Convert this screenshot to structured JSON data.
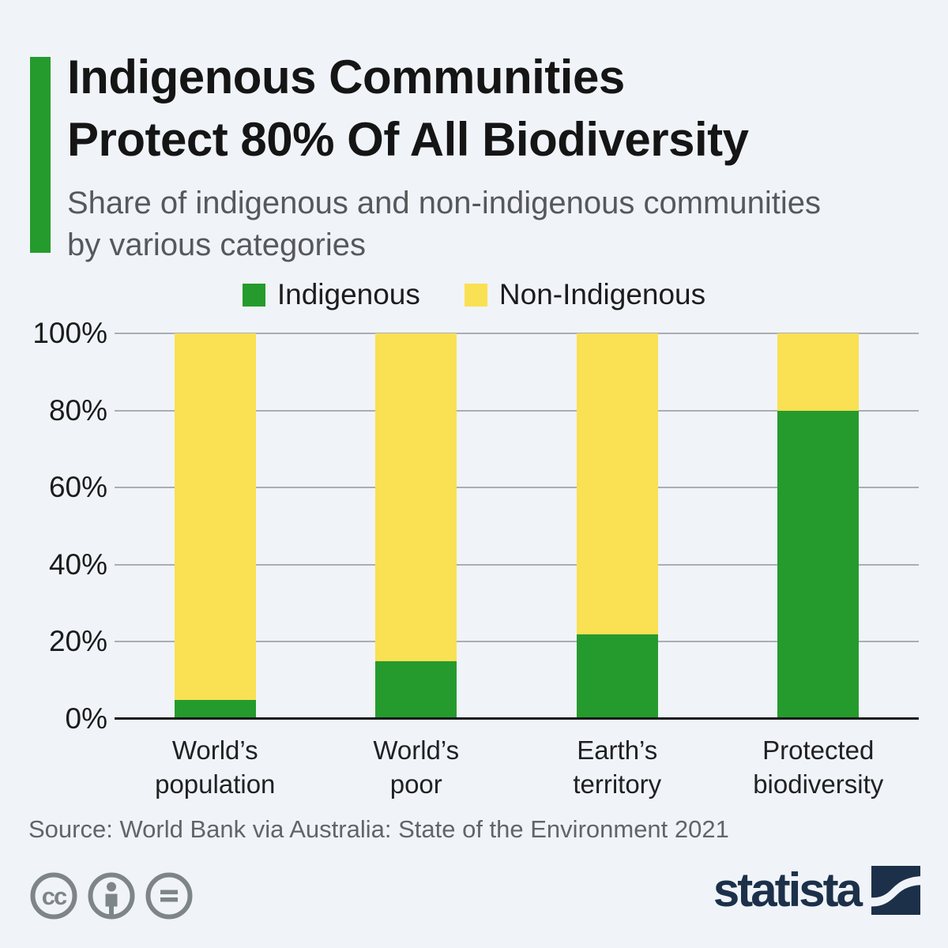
{
  "header": {
    "title_lines": [
      "Indigenous Communities",
      "Protect 80% Of All Biodiversity"
    ],
    "subtitle_lines": [
      "Share of indigenous and non-indigenous communities",
      "by various categories"
    ],
    "accent_color": "#259b2d"
  },
  "legend": [
    {
      "label": "Indigenous",
      "color": "#259b2d"
    },
    {
      "label": "Non-Indigenous",
      "color": "#fae053"
    }
  ],
  "chart_data": {
    "type": "bar",
    "stacked": true,
    "title": "Share of indigenous and non-indigenous communities by various categories",
    "categories": [
      "World’s\npopulation",
      "World’s\npoor",
      "Earth’s\nterritory",
      "Protected\nbiodiversity"
    ],
    "series": [
      {
        "name": "Indigenous",
        "color": "#259b2d",
        "values": [
          5,
          15,
          22,
          80
        ]
      },
      {
        "name": "Non-Indigenous",
        "color": "#fae053",
        "values": [
          95,
          85,
          78,
          20
        ]
      }
    ],
    "xlabel": "",
    "ylabel": "",
    "ylim": [
      0,
      100
    ],
    "y_ticks": [
      "0%",
      "20%",
      "40%",
      "60%",
      "80%",
      "100%"
    ],
    "grid": true,
    "legend_position": "top",
    "gridline_color": "#aaaeb4",
    "axis_color": "#17181a"
  },
  "footer": {
    "source": "Source: World Bank via Australia: State of the Environment 2021",
    "license_icons": [
      "cc-icon",
      "attribution-icon",
      "no-derivatives-icon"
    ],
    "icon_color": "#7e8588",
    "brand": "statista",
    "brand_color": "#1c304a"
  },
  "page": {
    "background": "#f0f4f8"
  }
}
